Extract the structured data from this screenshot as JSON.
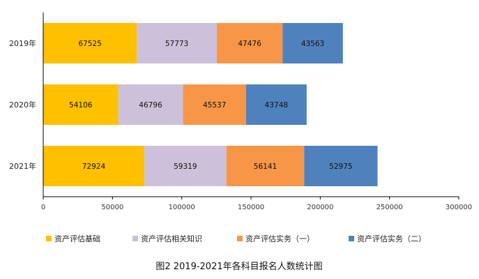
{
  "chart_data": {
    "type": "bar",
    "orientation": "horizontal",
    "stacked": true,
    "categories": [
      "2019年",
      "2020年",
      "2021年"
    ],
    "series": [
      {
        "name": "资产评估基础",
        "values": [
          67525,
          54106,
          72924
        ]
      },
      {
        "name": "资产评估相关知识",
        "values": [
          57773,
          46796,
          59319
        ]
      },
      {
        "name": "资产评估实务（一）",
        "values": [
          47476,
          45537,
          56141
        ]
      },
      {
        "name": "资产评估实务（二）",
        "values": [
          43563,
          43748,
          52975
        ]
      }
    ],
    "xlim": [
      0,
      300000
    ],
    "xticks": [
      0,
      50000,
      100000,
      150000,
      200000,
      250000,
      300000
    ],
    "data_labels": true,
    "grid": false,
    "legend_position": "bottom",
    "caption": "图2   2019-2021年各科目报名人数统计图"
  },
  "colors": {
    "series": [
      "#FFC000",
      "#CCC0DA",
      "#F79646",
      "#4F81BD"
    ],
    "axis": "#000000"
  }
}
